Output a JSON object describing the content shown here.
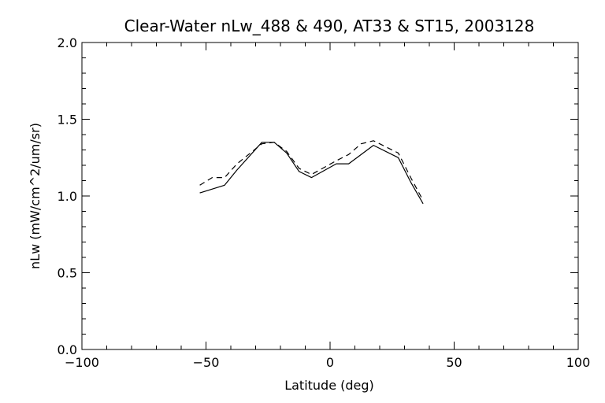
{
  "chart_data": {
    "type": "line",
    "title": "Clear-Water nLw_488 & 490, AT33 & ST15, 2003128",
    "xlabel": "Latitude (deg)",
    "ylabel": "nLw (mW/cm^2/um/sr)",
    "xlim": [
      -100,
      100
    ],
    "ylim": [
      0.0,
      2.0
    ],
    "xticks": [
      -100,
      -50,
      0,
      50,
      100
    ],
    "xtick_labels": [
      "−100",
      "−50",
      "0",
      "50",
      "100"
    ],
    "yticks": [
      0.0,
      0.5,
      1.0,
      1.5,
      2.0
    ],
    "ytick_labels": [
      "0.0",
      "0.5",
      "1.0",
      "1.5",
      "2.0"
    ],
    "grid": false,
    "series": [
      {
        "style": "solid",
        "color": "#000000",
        "x": [
          -52.5,
          -42.5,
          -37.5,
          -27.5,
          -22.5,
          -17.5,
          -12.5,
          -7.5,
          2.5,
          7.5,
          17.5,
          27.5,
          32.5,
          37.5
        ],
        "y": [
          1.02,
          1.07,
          1.17,
          1.35,
          1.35,
          1.28,
          1.16,
          1.12,
          1.21,
          1.21,
          1.33,
          1.25,
          1.09,
          0.95
        ]
      },
      {
        "style": "dashed",
        "color": "#000000",
        "x": [
          -52.5,
          -47.5,
          -42.5,
          -37.5,
          -27.5,
          -22.5,
          -17.5,
          -12.5,
          -7.5,
          2.5,
          7.5,
          12.5,
          17.5,
          27.5,
          32.5,
          37.5
        ],
        "y": [
          1.07,
          1.12,
          1.12,
          1.21,
          1.34,
          1.35,
          1.29,
          1.18,
          1.14,
          1.23,
          1.27,
          1.34,
          1.36,
          1.28,
          1.12,
          0.97
        ]
      }
    ]
  }
}
